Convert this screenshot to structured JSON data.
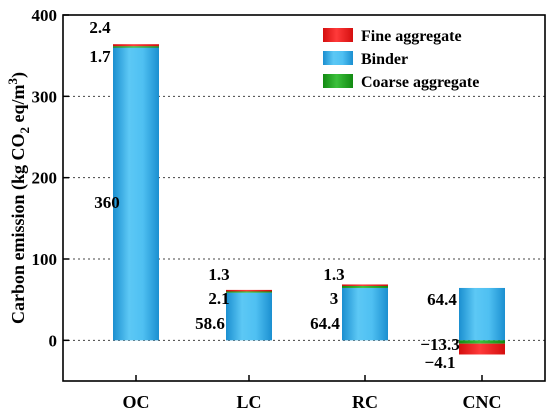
{
  "chart_data": {
    "type": "bar",
    "stacked": true,
    "categories": [
      "OC",
      "LC",
      "RC",
      "CNC"
    ],
    "series": [
      {
        "name": "Fine aggregate",
        "values": [
          2.4,
          1.3,
          1.3,
          -13.3
        ],
        "color": "#ee1c1c"
      },
      {
        "name": "Binder",
        "values": [
          360,
          58.6,
          64.4,
          64.4
        ],
        "color": "#2aa7e6"
      },
      {
        "name": "Coarse aggregate",
        "values": [
          1.7,
          2.1,
          3,
          -4.1
        ],
        "color": "#1fa31f"
      }
    ],
    "data_labels": [
      [
        "2.4",
        "1.7",
        "360"
      ],
      [
        "1.3",
        "2.1",
        "58.6"
      ],
      [
        "1.3",
        "3",
        "64.4"
      ],
      [
        "64.4",
        "−13.3",
        "−4.1"
      ]
    ],
    "ylabel": {
      "main": "Carbon emission (kg CO",
      "sub": "2",
      "mid": " eq/m",
      "sup": "3",
      "end": ")"
    },
    "ylim": [
      -50,
      400
    ],
    "yticks": [
      0,
      100,
      200,
      300,
      400
    ],
    "grid": "dotted-horizontal",
    "legend_position": "top-right"
  }
}
